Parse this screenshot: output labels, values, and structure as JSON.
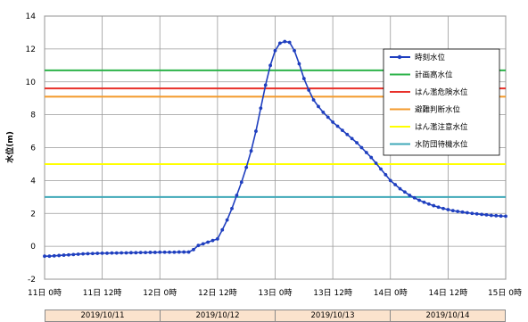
{
  "chart_data": {
    "type": "line",
    "ylabel": "水位(m)",
    "ylim": [
      -2,
      14
    ],
    "yticks": [
      -2,
      0,
      2,
      4,
      6,
      8,
      10,
      12,
      14
    ],
    "xlim": [
      0,
      96
    ],
    "xticks": [
      {
        "x": 0,
        "label": "11日 0時"
      },
      {
        "x": 12,
        "label": "11日 12時"
      },
      {
        "x": 24,
        "label": "12日 0時"
      },
      {
        "x": 36,
        "label": "12日 12時"
      },
      {
        "x": 48,
        "label": "13日 0時"
      },
      {
        "x": 60,
        "label": "13日 12時"
      },
      {
        "x": 72,
        "label": "14日 0時"
      },
      {
        "x": 84,
        "label": "14日 12時"
      },
      {
        "x": 96,
        "label": "15日 0時"
      }
    ],
    "grid": true,
    "legend_position": "right",
    "series": [
      {
        "name": "時刻水位",
        "color": "#1f3fbf",
        "marker": "circle",
        "points": [
          [
            0,
            -0.6
          ],
          [
            1,
            -0.6
          ],
          [
            2,
            -0.58
          ],
          [
            3,
            -0.56
          ],
          [
            4,
            -0.54
          ],
          [
            5,
            -0.52
          ],
          [
            6,
            -0.5
          ],
          [
            7,
            -0.48
          ],
          [
            8,
            -0.46
          ],
          [
            9,
            -0.45
          ],
          [
            10,
            -0.44
          ],
          [
            11,
            -0.43
          ],
          [
            12,
            -0.42
          ],
          [
            13,
            -0.42
          ],
          [
            14,
            -0.41
          ],
          [
            15,
            -0.41
          ],
          [
            16,
            -0.4
          ],
          [
            17,
            -0.4
          ],
          [
            18,
            -0.39
          ],
          [
            19,
            -0.39
          ],
          [
            20,
            -0.38
          ],
          [
            21,
            -0.38
          ],
          [
            22,
            -0.37
          ],
          [
            23,
            -0.37
          ],
          [
            24,
            -0.36
          ],
          [
            25,
            -0.36
          ],
          [
            26,
            -0.36
          ],
          [
            27,
            -0.36
          ],
          [
            28,
            -0.35
          ],
          [
            29,
            -0.35
          ],
          [
            30,
            -0.35
          ],
          [
            31,
            -0.2
          ],
          [
            32,
            0.05
          ],
          [
            33,
            0.15
          ],
          [
            34,
            0.25
          ],
          [
            35,
            0.35
          ],
          [
            36,
            0.45
          ],
          [
            37,
            1.0
          ],
          [
            38,
            1.6
          ],
          [
            39,
            2.3
          ],
          [
            40,
            3.1
          ],
          [
            41,
            3.9
          ],
          [
            42,
            4.8
          ],
          [
            43,
            5.8
          ],
          [
            44,
            7.0
          ],
          [
            45,
            8.4
          ],
          [
            46,
            9.8
          ],
          [
            47,
            11.0
          ],
          [
            48,
            11.9
          ],
          [
            49,
            12.35
          ],
          [
            50,
            12.45
          ],
          [
            51,
            12.4
          ],
          [
            52,
            11.9
          ],
          [
            53,
            11.1
          ],
          [
            54,
            10.2
          ],
          [
            55,
            9.5
          ],
          [
            56,
            8.9
          ],
          [
            57,
            8.5
          ],
          [
            58,
            8.15
          ],
          [
            59,
            7.85
          ],
          [
            60,
            7.55
          ],
          [
            61,
            7.3
          ],
          [
            62,
            7.05
          ],
          [
            63,
            6.8
          ],
          [
            64,
            6.55
          ],
          [
            65,
            6.3
          ],
          [
            66,
            6.0
          ],
          [
            67,
            5.7
          ],
          [
            68,
            5.4
          ],
          [
            69,
            5.05
          ],
          [
            70,
            4.7
          ],
          [
            71,
            4.35
          ],
          [
            72,
            4.0
          ],
          [
            73,
            3.75
          ],
          [
            74,
            3.5
          ],
          [
            75,
            3.3
          ],
          [
            76,
            3.1
          ],
          [
            77,
            2.95
          ],
          [
            78,
            2.8
          ],
          [
            79,
            2.68
          ],
          [
            80,
            2.57
          ],
          [
            81,
            2.47
          ],
          [
            82,
            2.38
          ],
          [
            83,
            2.3
          ],
          [
            84,
            2.23
          ],
          [
            85,
            2.17
          ],
          [
            86,
            2.12
          ],
          [
            87,
            2.08
          ],
          [
            88,
            2.04
          ],
          [
            89,
            2.0
          ],
          [
            90,
            1.97
          ],
          [
            91,
            1.94
          ],
          [
            92,
            1.91
          ],
          [
            93,
            1.88
          ],
          [
            94,
            1.86
          ],
          [
            95,
            1.84
          ],
          [
            96,
            1.83
          ]
        ]
      }
    ],
    "reference_lines": [
      {
        "name": "計画高水位",
        "value": 10.7,
        "color": "#2db34a"
      },
      {
        "name": "はん濫危険水位",
        "value": 9.6,
        "color": "#e8302a"
      },
      {
        "name": "避難判断水位",
        "value": 9.1,
        "color": "#f39a2b"
      },
      {
        "name": "はん濫注意水位",
        "value": 5.0,
        "color": "#ffff00"
      },
      {
        "name": "水防団待機水位",
        "value": 3.0,
        "color": "#3fa8b8"
      }
    ],
    "date_row": [
      "2019/10/11",
      "2019/10/12",
      "2019/10/13",
      "2019/10/14"
    ]
  }
}
